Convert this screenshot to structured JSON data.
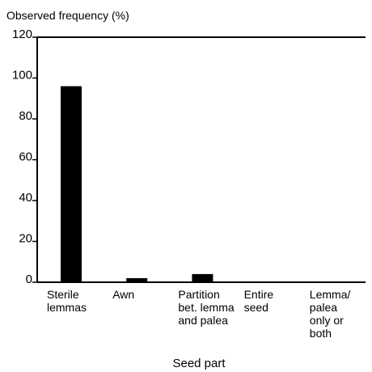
{
  "chart_data": {
    "type": "bar",
    "ylabel": "Observed frequency (%)",
    "xlabel": "Seed part",
    "ylim": [
      0,
      120
    ],
    "yticks": [
      0,
      20,
      40,
      60,
      80,
      100,
      120
    ],
    "grid": false,
    "categories": [
      [
        "Sterile",
        "lemmas"
      ],
      [
        "Awn"
      ],
      [
        "Partition",
        "bet. lemma",
        "and palea"
      ],
      [
        "Entire",
        "seed"
      ],
      [
        "Lemma/",
        "palea",
        "only or",
        "both"
      ]
    ],
    "values": [
      96,
      2,
      4,
      0,
      0
    ],
    "colors": {
      "bar": "#000000",
      "axis": "#000000"
    }
  }
}
